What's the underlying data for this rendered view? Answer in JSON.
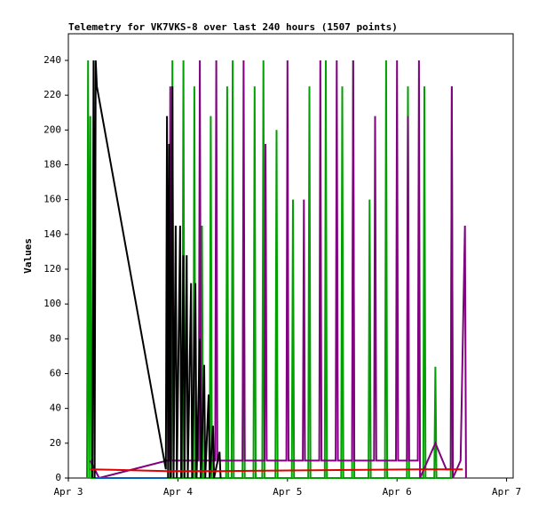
{
  "chart_data": {
    "type": "line",
    "title": "Telemetry for VK7VKS-8 over last 240 hours (1507 points)",
    "y_label": "Values",
    "xlim": [
      0,
      4.06
    ],
    "ylim": [
      0,
      255.3
    ],
    "xticks": [
      {
        "value": 0,
        "label": "Apr 3"
      },
      {
        "value": 1,
        "label": "Apr 4"
      },
      {
        "value": 2,
        "label": "Apr 5"
      },
      {
        "value": 3,
        "label": "Apr 6"
      },
      {
        "value": 4,
        "label": "Apr 7"
      }
    ],
    "yticks": [
      0,
      20,
      40,
      60,
      80,
      100,
      120,
      140,
      160,
      180,
      200,
      220,
      240
    ],
    "series": [
      {
        "color": "#00a000",
        "x": [
          0.17,
          0.18,
          0.19,
          0.2,
          0.21,
          0.22,
          0.94,
          0.95,
          0.96,
          1.04,
          1.05,
          1.06,
          1.14,
          1.15,
          1.16,
          1.21,
          1.22,
          1.23,
          1.29,
          1.3,
          1.31,
          1.44,
          1.45,
          1.46,
          1.49,
          1.5,
          1.51,
          1.59,
          1.6,
          1.61,
          1.69,
          1.7,
          1.71,
          1.77,
          1.78,
          1.79,
          1.89,
          1.9,
          1.91,
          2.04,
          2.05,
          2.06,
          2.19,
          2.2,
          2.21,
          2.34,
          2.35,
          2.36,
          2.49,
          2.5,
          2.51,
          2.59,
          2.6,
          2.61,
          2.74,
          2.75,
          2.76,
          2.89,
          2.9,
          2.91,
          3.09,
          3.1,
          3.11,
          3.24,
          3.25,
          3.26,
          3.34,
          3.35,
          3.36,
          3.49,
          3.5,
          3.51
        ],
        "values": [
          0,
          240,
          0,
          208,
          0,
          0,
          0,
          240,
          0,
          0,
          240,
          0,
          0,
          225,
          0,
          0,
          145,
          0,
          0,
          208,
          0,
          0,
          225,
          0,
          0,
          240,
          0,
          0,
          176,
          0,
          0,
          225,
          0,
          0,
          240,
          0,
          0,
          200,
          0,
          0,
          160,
          0,
          0,
          225,
          0,
          0,
          240,
          0,
          0,
          225,
          0,
          0,
          240,
          0,
          0,
          160,
          0,
          0,
          240,
          0,
          0,
          225,
          0,
          0,
          225,
          0,
          0,
          64,
          0,
          0,
          225,
          0
        ]
      },
      {
        "color": "#800080",
        "x": [
          0.2,
          0.28,
          0.9,
          0.92,
          0.93,
          0.94,
          1.19,
          1.2,
          1.21,
          1.34,
          1.35,
          1.36,
          1.59,
          1.6,
          1.61,
          1.79,
          1.8,
          1.81,
          1.99,
          2.0,
          2.01,
          2.14,
          2.15,
          2.16,
          2.29,
          2.3,
          2.31,
          2.44,
          2.45,
          2.46,
          2.59,
          2.6,
          2.61,
          2.79,
          2.8,
          2.81,
          2.99,
          3.0,
          3.01,
          3.09,
          3.1,
          3.11,
          3.19,
          3.2,
          3.21,
          3.35,
          3.45,
          3.49,
          3.5,
          3.51,
          3.58,
          3.62,
          3.63
        ],
        "values": [
          10,
          0,
          10,
          10,
          225,
          10,
          10,
          240,
          10,
          10,
          240,
          10,
          10,
          240,
          10,
          10,
          192,
          10,
          10,
          240,
          10,
          10,
          160,
          10,
          10,
          240,
          10,
          10,
          240,
          10,
          10,
          240,
          10,
          10,
          208,
          10,
          10,
          240,
          10,
          10,
          208,
          10,
          10,
          240,
          0,
          20,
          5,
          5,
          225,
          0,
          10,
          145,
          0
        ]
      },
      {
        "color": "#000000",
        "x": [
          0.22,
          0.23,
          0.24,
          0.25,
          0.26,
          0.89,
          0.9,
          0.91,
          0.92,
          0.93,
          0.95,
          0.96,
          0.98,
          0.99,
          1.02,
          1.03,
          1.05,
          1.06,
          1.08,
          1.09,
          1.12,
          1.13,
          1.16,
          1.17,
          1.2,
          1.21,
          1.24,
          1.25,
          1.28,
          1.29,
          1.32,
          1.33,
          1.38,
          1.39
        ],
        "values": [
          0,
          240,
          0,
          240,
          225,
          5,
          208,
          0,
          192,
          0,
          225,
          0,
          145,
          0,
          145,
          0,
          128,
          0,
          128,
          0,
          112,
          0,
          112,
          0,
          80,
          0,
          65,
          0,
          48,
          0,
          30,
          0,
          15,
          0
        ]
      },
      {
        "color": "#e00000",
        "x": [
          0.2,
          0.9,
          1.4,
          3.2,
          3.6
        ],
        "values": [
          5,
          4,
          4,
          5,
          5
        ]
      },
      {
        "color": "#0060c0",
        "x": [
          0.25,
          0.9
        ],
        "values": [
          0,
          0
        ]
      }
    ]
  }
}
